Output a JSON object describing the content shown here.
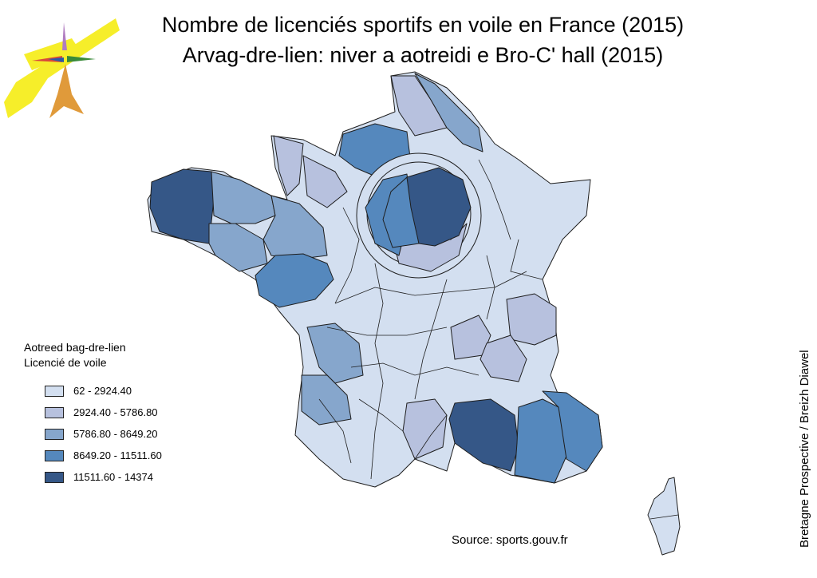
{
  "title": {
    "line1": "Nombre de licenciés sportifs en voile en France (2015)",
    "line2": "Arvag-dre-lien: niver a aotreidi e Bro-C' hall (2015)"
  },
  "legend": {
    "title_line1": "Aotreed bag-dre-lien",
    "title_line2": "Licencié de voile",
    "classes": [
      {
        "label": "62 - 2924.40",
        "color": "#d3dff0"
      },
      {
        "label": "2924.40 - 5786.80",
        "color": "#b7c1de"
      },
      {
        "label": "5786.80 - 8649.20",
        "color": "#86a6cc"
      },
      {
        "label": "8649.20 - 11511.60",
        "color": "#5588bd"
      },
      {
        "label": "11511.60 - 14374",
        "color": "#355787"
      }
    ]
  },
  "source": "Source: sports.gouv.fr",
  "credit": "Bretagne Prospective / Breizh Diawel",
  "colors": {
    "base": "#d3dff0",
    "outline": "#1e1e1e"
  },
  "logo_icon": "bretagne-prospective-logo"
}
